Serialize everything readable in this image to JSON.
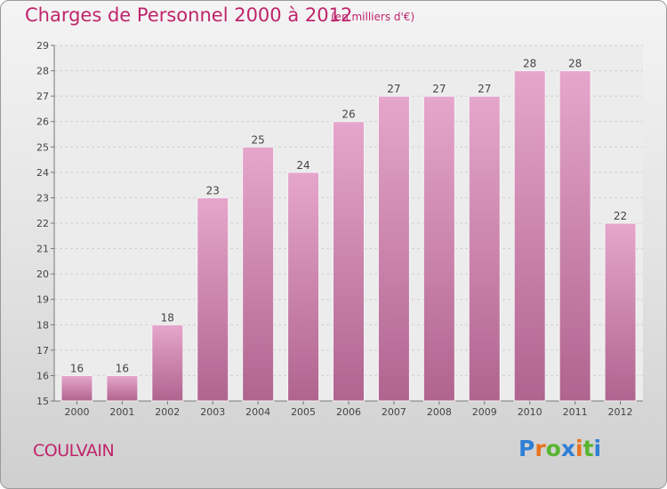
{
  "title": "Charges de Personnel 2000 à 2012",
  "subtitle": "(en milliers d'€)",
  "commune": "COULVAIN",
  "logo": {
    "text": "Proxiti",
    "letter_colors": [
      "#2f7fd6",
      "#e8731e",
      "#58b530",
      "#2f7fd6",
      "#e8731e",
      "#58b530",
      "#2f7fd6"
    ]
  },
  "colors": {
    "accent": "#c0246a",
    "bar_top": "#e6a6cc",
    "bar_bottom": "#b0648f"
  },
  "chart_data": {
    "type": "bar",
    "categories": [
      "2000",
      "2001",
      "2002",
      "2003",
      "2004",
      "2005",
      "2006",
      "2007",
      "2008",
      "2009",
      "2010",
      "2011",
      "2012"
    ],
    "values": [
      16,
      16,
      18,
      23,
      25,
      24,
      26,
      27,
      27,
      27,
      28,
      28,
      22
    ],
    "ylim": [
      15,
      29
    ],
    "yticks": [
      15,
      16,
      17,
      18,
      19,
      20,
      21,
      22,
      23,
      24,
      25,
      26,
      27,
      28,
      29
    ],
    "grid": true,
    "title": "Charges de Personnel 2000 à 2012",
    "xlabel": "",
    "ylabel": ""
  }
}
